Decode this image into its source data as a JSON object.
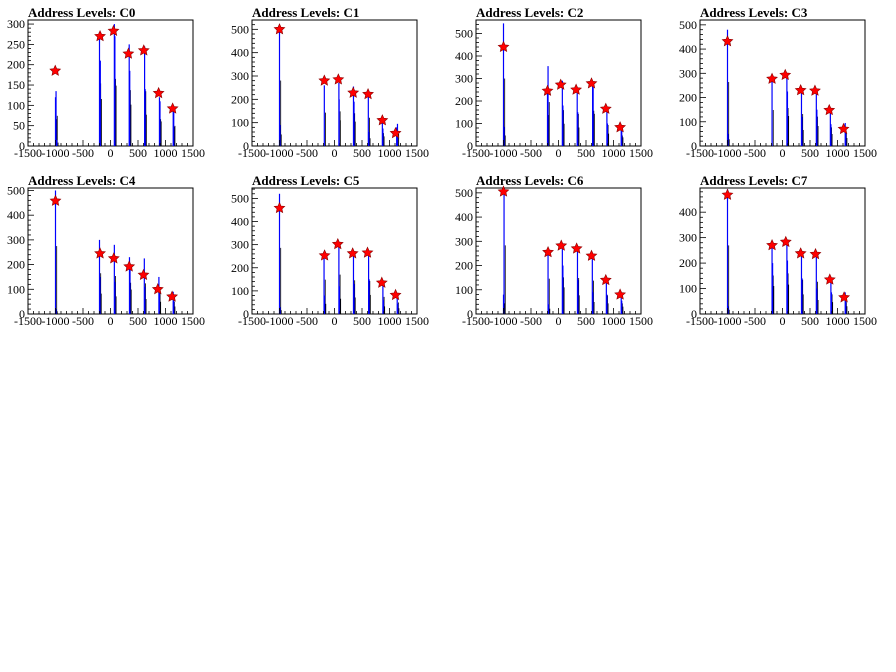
{
  "chart_data": [
    {
      "type": "bar",
      "title": "Address Levels: C0",
      "xlim": [
        -1500,
        1500
      ],
      "ylim": [
        0,
        310
      ],
      "xticks": [
        "-1500",
        "-1000",
        "-500",
        "0",
        "500",
        "1000",
        "1500"
      ],
      "yticks": [
        "0",
        "50",
        "100",
        "150",
        "200",
        "250",
        "300"
      ],
      "histogram": [
        {
          "x": -1000,
          "value": 120
        },
        {
          "x": -990,
          "value": 135
        },
        {
          "x": -975,
          "value": 15
        },
        {
          "x": -200,
          "value": 280
        },
        {
          "x": -185,
          "value": 210
        },
        {
          "x": 70,
          "value": 300
        },
        {
          "x": 80,
          "value": 270
        },
        {
          "x": 340,
          "value": 250
        },
        {
          "x": 350,
          "value": 185
        },
        {
          "x": 620,
          "value": 245
        },
        {
          "x": 630,
          "value": 140
        },
        {
          "x": 890,
          "value": 120
        },
        {
          "x": 900,
          "value": 110
        },
        {
          "x": 1140,
          "value": 85
        },
        {
          "x": 1150,
          "value": 90
        }
      ],
      "peaks": [
        {
          "x": -1005,
          "y": 185
        },
        {
          "x": -190,
          "y": 270
        },
        {
          "x": 55,
          "y": 283
        },
        {
          "x": 325,
          "y": 227
        },
        {
          "x": 605,
          "y": 235
        },
        {
          "x": 875,
          "y": 130
        },
        {
          "x": 1130,
          "y": 92
        }
      ]
    },
    {
      "type": "bar",
      "title": "Address Levels: C1",
      "xlim": [
        -1500,
        1500
      ],
      "ylim": [
        0,
        540
      ],
      "xticks": [
        "-1500",
        "-1000",
        "-500",
        "0",
        "500",
        "1000",
        "1500"
      ],
      "yticks": [
        "0",
        "100",
        "200",
        "300",
        "400",
        "500"
      ],
      "histogram": [
        {
          "x": -1000,
          "value": 510
        },
        {
          "x": -990,
          "value": 90
        },
        {
          "x": -185,
          "value": 260
        },
        {
          "x": 80,
          "value": 270
        },
        {
          "x": 85,
          "value": 200
        },
        {
          "x": 345,
          "value": 255
        },
        {
          "x": 355,
          "value": 190
        },
        {
          "x": 615,
          "value": 220
        },
        {
          "x": 625,
          "value": 60
        },
        {
          "x": 870,
          "value": 100
        },
        {
          "x": 880,
          "value": 75
        },
        {
          "x": 1130,
          "value": 80
        },
        {
          "x": 1145,
          "value": 95
        }
      ],
      "peaks": [
        {
          "x": -1000,
          "y": 500
        },
        {
          "x": -185,
          "y": 280
        },
        {
          "x": 70,
          "y": 285
        },
        {
          "x": 340,
          "y": 228
        },
        {
          "x": 610,
          "y": 222
        },
        {
          "x": 870,
          "y": 110
        },
        {
          "x": 1110,
          "y": 55
        }
      ]
    },
    {
      "type": "bar",
      "title": "Address Levels: C2",
      "xlim": [
        -1500,
        1500
      ],
      "ylim": [
        0,
        560
      ],
      "xticks": [
        "-1500",
        "-1000",
        "-500",
        "0",
        "500",
        "1000",
        "1500"
      ],
      "yticks": [
        "0",
        "100",
        "200",
        "300",
        "400",
        "500"
      ],
      "histogram": [
        {
          "x": -1000,
          "value": 545
        },
        {
          "x": -990,
          "value": 85
        },
        {
          "x": -200,
          "value": 250
        },
        {
          "x": -190,
          "value": 355
        },
        {
          "x": 70,
          "value": 290
        },
        {
          "x": 80,
          "value": 180
        },
        {
          "x": 340,
          "value": 260
        },
        {
          "x": 350,
          "value": 150
        },
        {
          "x": 620,
          "value": 285
        },
        {
          "x": 630,
          "value": 260
        },
        {
          "x": 880,
          "value": 170
        },
        {
          "x": 890,
          "value": 100
        },
        {
          "x": 1140,
          "value": 85
        },
        {
          "x": 1150,
          "value": 70
        }
      ],
      "peaks": [
        {
          "x": -1000,
          "y": 440
        },
        {
          "x": -200,
          "y": 245
        },
        {
          "x": 40,
          "y": 272
        },
        {
          "x": 320,
          "y": 250
        },
        {
          "x": 600,
          "y": 278
        },
        {
          "x": 860,
          "y": 165
        },
        {
          "x": 1120,
          "y": 83
        }
      ]
    },
    {
      "type": "bar",
      "title": "Address Levels: C3",
      "xlim": [
        -1500,
        1500
      ],
      "ylim": [
        0,
        520
      ],
      "xticks": [
        "-1500",
        "-1000",
        "-500",
        "0",
        "500",
        "1000",
        "1500"
      ],
      "yticks": [
        "0",
        "100",
        "200",
        "300",
        "400",
        "500"
      ],
      "histogram": [
        {
          "x": -1000,
          "value": 480
        },
        {
          "x": -990,
          "value": 50
        },
        {
          "x": -190,
          "value": 270
        },
        {
          "x": 80,
          "value": 285
        },
        {
          "x": 90,
          "value": 225
        },
        {
          "x": 345,
          "value": 240
        },
        {
          "x": 355,
          "value": 120
        },
        {
          "x": 615,
          "value": 220
        },
        {
          "x": 625,
          "value": 150
        },
        {
          "x": 870,
          "value": 140
        },
        {
          "x": 880,
          "value": 90
        },
        {
          "x": 1140,
          "value": 95
        },
        {
          "x": 1150,
          "value": 60
        }
      ],
      "peaks": [
        {
          "x": -1000,
          "y": 432
        },
        {
          "x": -190,
          "y": 277
        },
        {
          "x": 50,
          "y": 293
        },
        {
          "x": 330,
          "y": 230
        },
        {
          "x": 590,
          "y": 228
        },
        {
          "x": 850,
          "y": 148
        },
        {
          "x": 1110,
          "y": 70
        }
      ]
    },
    {
      "type": "bar",
      "title": "Address Levels: C4",
      "xlim": [
        -1500,
        1500
      ],
      "ylim": [
        0,
        510
      ],
      "xticks": [
        "-1500",
        "-1000",
        "-500",
        "0",
        "500",
        "1000",
        "1500"
      ],
      "yticks": [
        "0",
        "100",
        "200",
        "300",
        "400",
        "500"
      ],
      "histogram": [
        {
          "x": -1000,
          "value": 500
        },
        {
          "x": -990,
          "value": 20
        },
        {
          "x": -200,
          "value": 300
        },
        {
          "x": -190,
          "value": 150
        },
        {
          "x": 70,
          "value": 280
        },
        {
          "x": 80,
          "value": 130
        },
        {
          "x": 345,
          "value": 230
        },
        {
          "x": 355,
          "value": 180
        },
        {
          "x": 615,
          "value": 225
        },
        {
          "x": 625,
          "value": 110
        },
        {
          "x": 880,
          "value": 150
        },
        {
          "x": 890,
          "value": 90
        },
        {
          "x": 1140,
          "value": 90
        },
        {
          "x": 1150,
          "value": 55
        }
      ],
      "peaks": [
        {
          "x": -1000,
          "y": 458
        },
        {
          "x": -190,
          "y": 245
        },
        {
          "x": 60,
          "y": 225
        },
        {
          "x": 340,
          "y": 192
        },
        {
          "x": 600,
          "y": 158
        },
        {
          "x": 860,
          "y": 100
        },
        {
          "x": 1120,
          "y": 70
        }
      ]
    },
    {
      "type": "bar",
      "title": "Address Levels: C5",
      "xlim": [
        -1500,
        1500
      ],
      "ylim": [
        0,
        545
      ],
      "xticks": [
        "-1500",
        "-1000",
        "-500",
        "0",
        "500",
        "1000",
        "1500"
      ],
      "yticks": [
        "0",
        "100",
        "200",
        "300",
        "400",
        "500"
      ],
      "histogram": [
        {
          "x": -1000,
          "value": 520
        },
        {
          "x": -990,
          "value": 30
        },
        {
          "x": -190,
          "value": 270
        },
        {
          "x": -180,
          "value": 80
        },
        {
          "x": 80,
          "value": 310
        },
        {
          "x": 90,
          "value": 120
        },
        {
          "x": 345,
          "value": 265
        },
        {
          "x": 355,
          "value": 130
        },
        {
          "x": 620,
          "value": 260
        },
        {
          "x": 630,
          "value": 150
        },
        {
          "x": 880,
          "value": 135
        },
        {
          "x": 890,
          "value": 60
        },
        {
          "x": 1140,
          "value": 90
        },
        {
          "x": 1150,
          "value": 45
        }
      ],
      "peaks": [
        {
          "x": -1000,
          "y": 458
        },
        {
          "x": -180,
          "y": 253
        },
        {
          "x": 60,
          "y": 302
        },
        {
          "x": 330,
          "y": 262
        },
        {
          "x": 600,
          "y": 265
        },
        {
          "x": 860,
          "y": 135
        },
        {
          "x": 1110,
          "y": 82
        }
      ]
    },
    {
      "type": "bar",
      "title": "Address Levels: C6",
      "xlim": [
        -1500,
        1500
      ],
      "ylim": [
        0,
        520
      ],
      "xticks": [
        "-1500",
        "-1000",
        "-500",
        "0",
        "500",
        "1000",
        "1500"
      ],
      "yticks": [
        "0",
        "100",
        "200",
        "300",
        "400",
        "500"
      ],
      "histogram": [
        {
          "x": -990,
          "value": 515
        },
        {
          "x": -1000,
          "value": 80
        },
        {
          "x": -190,
          "value": 265
        },
        {
          "x": -180,
          "value": 40
        },
        {
          "x": 70,
          "value": 275
        },
        {
          "x": 80,
          "value": 200
        },
        {
          "x": 345,
          "value": 270
        },
        {
          "x": 355,
          "value": 140
        },
        {
          "x": 615,
          "value": 250
        },
        {
          "x": 625,
          "value": 90
        },
        {
          "x": 870,
          "value": 140
        },
        {
          "x": 880,
          "value": 80
        },
        {
          "x": 1140,
          "value": 80
        },
        {
          "x": 1150,
          "value": 55
        }
      ],
      "peaks": [
        {
          "x": -1000,
          "y": 505
        },
        {
          "x": -190,
          "y": 255
        },
        {
          "x": 50,
          "y": 282
        },
        {
          "x": 330,
          "y": 270
        },
        {
          "x": 600,
          "y": 240
        },
        {
          "x": 860,
          "y": 140
        },
        {
          "x": 1120,
          "y": 80
        }
      ]
    },
    {
      "type": "bar",
      "title": "Address Levels: C7",
      "xlim": [
        -1500,
        1500
      ],
      "ylim": [
        0,
        495
      ],
      "xticks": [
        "-1500",
        "-1000",
        "-500",
        "0",
        "500",
        "1000",
        "1500"
      ],
      "yticks": [
        "0",
        "100",
        "200",
        "300",
        "400"
      ],
      "histogram": [
        {
          "x": -1000,
          "value": 490
        },
        {
          "x": -990,
          "value": 30
        },
        {
          "x": -190,
          "value": 275
        },
        {
          "x": -180,
          "value": 200
        },
        {
          "x": 80,
          "value": 290
        },
        {
          "x": 90,
          "value": 210
        },
        {
          "x": 345,
          "value": 245
        },
        {
          "x": 355,
          "value": 140
        },
        {
          "x": 615,
          "value": 230
        },
        {
          "x": 625,
          "value": 100
        },
        {
          "x": 880,
          "value": 140
        },
        {
          "x": 890,
          "value": 85
        },
        {
          "x": 1140,
          "value": 85
        },
        {
          "x": 1150,
          "value": 55
        }
      ],
      "peaks": [
        {
          "x": -1000,
          "y": 468
        },
        {
          "x": -190,
          "y": 270
        },
        {
          "x": 60,
          "y": 283
        },
        {
          "x": 330,
          "y": 238
        },
        {
          "x": 600,
          "y": 235
        },
        {
          "x": 860,
          "y": 135
        },
        {
          "x": 1120,
          "y": 65
        }
      ]
    }
  ],
  "colors": {
    "histogram_line": "#0000ff",
    "histogram_shadow": "#000000",
    "peak_marker": "#ff0000",
    "axis": "#000000",
    "background": "#ffffff"
  }
}
